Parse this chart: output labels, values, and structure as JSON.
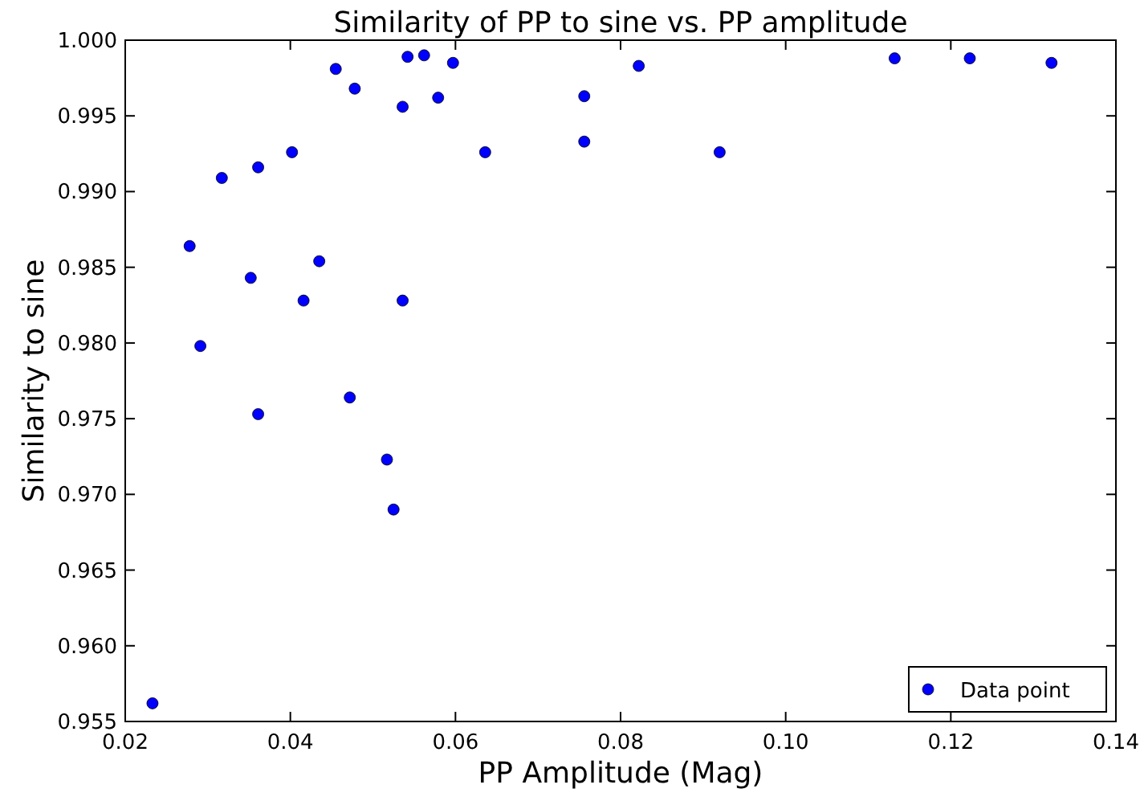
{
  "chart_data": {
    "type": "scatter",
    "title": "Similarity of PP to sine vs. PP amplitude",
    "xlabel": "PP Amplitude (Mag)",
    "ylabel": "Similarity to sine",
    "xlim": [
      0.02,
      0.14
    ],
    "xticks": [
      0.02,
      0.04,
      0.06,
      0.08,
      {
        "value": 0.1,
        "label": "0.10"
      },
      0.12,
      0.14
    ],
    "ylim": [
      0.955,
      1.0
    ],
    "yticks": [
      0.955,
      {
        "value": 0.96,
        "label": "0.960"
      },
      0.965,
      {
        "value": 0.97,
        "label": "0.970"
      },
      0.975,
      {
        "value": 0.98,
        "label": "0.980"
      },
      0.985,
      {
        "value": 0.99,
        "label": "0.990"
      },
      0.995,
      {
        "value": 1.0,
        "label": "1.000"
      }
    ],
    "grid": false,
    "legend": "bottom right",
    "marker": "circle",
    "series": [
      {
        "name": "Data point",
        "color": "#0000ff",
        "x": [
          0.0233,
          0.0278,
          0.0291,
          0.0317,
          0.0352,
          0.0361,
          0.0361,
          0.0402,
          0.0416,
          0.0435,
          0.0455,
          0.0472,
          0.0478,
          0.0517,
          0.0525,
          0.0536,
          0.0536,
          0.0542,
          0.0562,
          0.0579,
          0.0597,
          0.0636,
          0.0756,
          0.0756,
          0.0822,
          0.092,
          0.1132,
          0.1223,
          0.1322
        ],
        "values": [
          0.9562,
          0.9864,
          0.9798,
          0.9909,
          0.9843,
          0.9916,
          0.9753,
          0.9926,
          0.9828,
          0.9854,
          0.9981,
          0.9764,
          0.9968,
          0.9723,
          0.969,
          0.9956,
          0.9828,
          0.9989,
          0.999,
          0.9962,
          0.9985,
          0.9926,
          0.9933,
          0.9963,
          0.9983,
          0.9926,
          0.9988,
          0.9988,
          0.9985
        ]
      }
    ]
  }
}
